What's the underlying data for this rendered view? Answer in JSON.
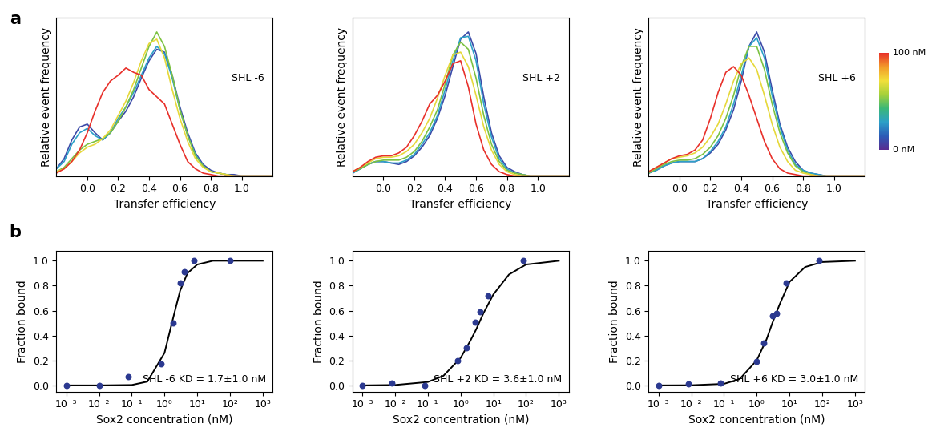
{
  "panel_labels": [
    "a",
    "b"
  ],
  "colorbar": {
    "colors": [
      "#5a2d91",
      "#2b5cb8",
      "#2ca0c8",
      "#3cb878",
      "#a6d13a",
      "#f2e03a",
      "#f39c2a",
      "#e8302a"
    ],
    "labels": [
      "0 nM",
      "100 nM"
    ]
  },
  "chart_data": [
    {
      "type": "line",
      "label": "SHL -6",
      "xlabel": "Transfer efficiency",
      "ylabel": "Relative event frequency",
      "xlim": [
        -0.2,
        1.2
      ],
      "xticks": [
        0.0,
        0.2,
        0.4,
        0.6,
        0.8,
        1.0
      ],
      "ylim": [
        0,
        1.1
      ],
      "yticks": [],
      "tick_labels": "x",
      "x": [
        -0.2,
        -0.15,
        -0.1,
        -0.05,
        0.0,
        0.05,
        0.1,
        0.15,
        0.2,
        0.25,
        0.3,
        0.35,
        0.4,
        0.45,
        0.5,
        0.55,
        0.6,
        0.65,
        0.7,
        0.75,
        0.8,
        0.85,
        0.9,
        0.95,
        1.0,
        1.05,
        1.1,
        1.15,
        1.2
      ],
      "series": [
        {
          "color": "#3b4aa8",
          "values": [
            0.05,
            0.12,
            0.25,
            0.34,
            0.36,
            0.3,
            0.25,
            0.3,
            0.38,
            0.45,
            0.55,
            0.68,
            0.8,
            0.88,
            0.86,
            0.7,
            0.48,
            0.3,
            0.16,
            0.08,
            0.04,
            0.02,
            0.01,
            0.01,
            0,
            0,
            0,
            0,
            0
          ]
        },
        {
          "color": "#2ca0c8",
          "values": [
            0.05,
            0.1,
            0.22,
            0.3,
            0.33,
            0.28,
            0.25,
            0.3,
            0.4,
            0.48,
            0.58,
            0.7,
            0.82,
            0.9,
            0.85,
            0.68,
            0.46,
            0.28,
            0.15,
            0.07,
            0.03,
            0.02,
            0.01,
            0,
            0,
            0,
            0,
            0,
            0
          ]
        },
        {
          "color": "#7cc242",
          "values": [
            0.03,
            0.06,
            0.12,
            0.18,
            0.22,
            0.24,
            0.26,
            0.3,
            0.38,
            0.48,
            0.6,
            0.75,
            0.9,
            1.0,
            0.9,
            0.7,
            0.46,
            0.28,
            0.14,
            0.07,
            0.03,
            0.02,
            0.01,
            0,
            0,
            0,
            0,
            0,
            0
          ]
        },
        {
          "color": "#e6d83a",
          "values": [
            0.03,
            0.05,
            0.1,
            0.16,
            0.2,
            0.22,
            0.26,
            0.32,
            0.42,
            0.52,
            0.65,
            0.8,
            0.92,
            0.95,
            0.82,
            0.6,
            0.4,
            0.24,
            0.12,
            0.06,
            0.03,
            0.02,
            0.01,
            0,
            0,
            0,
            0,
            0,
            0
          ]
        },
        {
          "color": "#e8302a",
          "values": [
            0.02,
            0.05,
            0.1,
            0.18,
            0.3,
            0.45,
            0.58,
            0.66,
            0.7,
            0.75,
            0.72,
            0.7,
            0.6,
            0.55,
            0.5,
            0.36,
            0.22,
            0.1,
            0.05,
            0.02,
            0.01,
            0,
            0,
            0,
            0,
            0,
            0,
            0,
            0
          ]
        }
      ]
    },
    {
      "type": "line",
      "label": "SHL +2",
      "xlabel": "Transfer efficiency",
      "ylabel": "Relative event frequency",
      "xlim": [
        -0.2,
        1.2
      ],
      "xticks": [
        0.0,
        0.2,
        0.4,
        0.6,
        0.8,
        1.0
      ],
      "ylim": [
        0,
        1.1
      ],
      "yticks": [],
      "tick_labels": "x",
      "x": [
        -0.2,
        -0.15,
        -0.1,
        -0.05,
        0.0,
        0.05,
        0.1,
        0.15,
        0.2,
        0.25,
        0.3,
        0.35,
        0.4,
        0.45,
        0.5,
        0.55,
        0.6,
        0.65,
        0.7,
        0.75,
        0.8,
        0.85,
        0.9,
        0.95,
        1.0,
        1.05,
        1.1,
        1.15,
        1.2
      ],
      "series": [
        {
          "color": "#3b4aa8",
          "values": [
            0.02,
            0.05,
            0.08,
            0.1,
            0.1,
            0.09,
            0.08,
            0.1,
            0.14,
            0.2,
            0.28,
            0.4,
            0.56,
            0.76,
            0.95,
            1.0,
            0.85,
            0.55,
            0.3,
            0.14,
            0.06,
            0.03,
            0.01,
            0,
            0,
            0,
            0,
            0,
            0
          ]
        },
        {
          "color": "#2ca0c8",
          "values": [
            0.02,
            0.05,
            0.08,
            0.1,
            0.1,
            0.09,
            0.09,
            0.11,
            0.15,
            0.22,
            0.3,
            0.42,
            0.6,
            0.8,
            0.96,
            0.97,
            0.8,
            0.5,
            0.27,
            0.12,
            0.05,
            0.02,
            0.01,
            0,
            0,
            0,
            0,
            0,
            0
          ]
        },
        {
          "color": "#7cc242",
          "values": [
            0.03,
            0.05,
            0.08,
            0.1,
            0.11,
            0.11,
            0.11,
            0.13,
            0.17,
            0.24,
            0.34,
            0.46,
            0.64,
            0.84,
            0.93,
            0.88,
            0.68,
            0.42,
            0.22,
            0.1,
            0.04,
            0.02,
            0.01,
            0,
            0,
            0,
            0,
            0,
            0
          ]
        },
        {
          "color": "#e6d83a",
          "values": [
            0.03,
            0.06,
            0.09,
            0.12,
            0.13,
            0.13,
            0.14,
            0.17,
            0.22,
            0.3,
            0.4,
            0.54,
            0.7,
            0.84,
            0.86,
            0.76,
            0.56,
            0.34,
            0.18,
            0.08,
            0.03,
            0.01,
            0,
            0,
            0,
            0,
            0,
            0,
            0
          ]
        },
        {
          "color": "#e8302a",
          "values": [
            0.03,
            0.06,
            0.1,
            0.13,
            0.14,
            0.14,
            0.16,
            0.2,
            0.28,
            0.38,
            0.5,
            0.56,
            0.66,
            0.78,
            0.8,
            0.62,
            0.36,
            0.18,
            0.08,
            0.03,
            0.01,
            0,
            0,
            0,
            0,
            0,
            0,
            0,
            0
          ]
        }
      ]
    },
    {
      "type": "line",
      "label": "SHL +6",
      "xlabel": "Transfer efficiency",
      "ylabel": "Relative event frequency",
      "xlim": [
        -0.2,
        1.2
      ],
      "xticks": [
        0.0,
        0.2,
        0.4,
        0.6,
        0.8,
        1.0
      ],
      "ylim": [
        0,
        1.1
      ],
      "yticks": [],
      "tick_labels": "x",
      "x": [
        -0.2,
        -0.15,
        -0.1,
        -0.05,
        0.0,
        0.05,
        0.1,
        0.15,
        0.2,
        0.25,
        0.3,
        0.35,
        0.4,
        0.45,
        0.5,
        0.55,
        0.6,
        0.65,
        0.7,
        0.75,
        0.8,
        0.85,
        0.9,
        0.95,
        1.0,
        1.05,
        1.1,
        1.15,
        1.2
      ],
      "series": [
        {
          "color": "#3b4aa8",
          "values": [
            0.02,
            0.04,
            0.07,
            0.09,
            0.1,
            0.1,
            0.1,
            0.12,
            0.16,
            0.22,
            0.32,
            0.46,
            0.66,
            0.9,
            1.0,
            0.86,
            0.6,
            0.36,
            0.2,
            0.1,
            0.04,
            0.02,
            0.01,
            0,
            0,
            0,
            0,
            0,
            0
          ]
        },
        {
          "color": "#2ca0c8",
          "values": [
            0.02,
            0.04,
            0.07,
            0.09,
            0.1,
            0.1,
            0.1,
            0.12,
            0.17,
            0.24,
            0.34,
            0.5,
            0.7,
            0.9,
            0.96,
            0.82,
            0.56,
            0.34,
            0.18,
            0.08,
            0.04,
            0.02,
            0.01,
            0,
            0,
            0,
            0,
            0,
            0
          ]
        },
        {
          "color": "#7cc242",
          "values": [
            0.02,
            0.05,
            0.08,
            0.1,
            0.11,
            0.11,
            0.12,
            0.15,
            0.2,
            0.28,
            0.4,
            0.56,
            0.76,
            0.9,
            0.9,
            0.74,
            0.5,
            0.3,
            0.16,
            0.07,
            0.03,
            0.01,
            0,
            0,
            0,
            0,
            0,
            0,
            0
          ]
        },
        {
          "color": "#e6d83a",
          "values": [
            0.03,
            0.06,
            0.09,
            0.12,
            0.13,
            0.14,
            0.16,
            0.2,
            0.27,
            0.36,
            0.5,
            0.66,
            0.78,
            0.82,
            0.74,
            0.56,
            0.36,
            0.2,
            0.1,
            0.04,
            0.02,
            0.01,
            0,
            0,
            0,
            0,
            0,
            0,
            0
          ]
        },
        {
          "color": "#e8302a",
          "values": [
            0.03,
            0.06,
            0.09,
            0.12,
            0.14,
            0.15,
            0.18,
            0.25,
            0.4,
            0.58,
            0.72,
            0.76,
            0.7,
            0.56,
            0.4,
            0.24,
            0.12,
            0.05,
            0.02,
            0.01,
            0,
            0,
            0,
            0,
            0,
            0,
            0,
            0,
            0
          ]
        }
      ]
    },
    {
      "type": "scatter",
      "log": "x",
      "annotation": "SHL -6 KD = 1.7±1.0 nM",
      "xlabel": "Sox2 concentration (nM)",
      "ylabel": "Fraction bound",
      "xlim": [
        0.0005,
        2000
      ],
      "xticks": [
        {
          "value": 0.001,
          "label": "10⁻³"
        },
        {
          "value": 0.01,
          "label": "10⁻²"
        },
        {
          "value": 0.1,
          "label": "10⁻¹"
        },
        {
          "value": 1,
          "label": "10⁰"
        },
        {
          "value": 10,
          "label": "10¹"
        },
        {
          "value": 100,
          "label": "10²"
        },
        {
          "value": 1000,
          "label": "10³"
        }
      ],
      "ylim": [
        -0.05,
        1.08
      ],
      "yticks": [
        0.0,
        0.2,
        0.4,
        0.6,
        0.8,
        1.0
      ],
      "series": [
        {
          "type": "line",
          "color": "#000000",
          "line_style": "solid",
          "x": [
            0.001,
            0.01,
            0.1,
            0.3,
            1,
            2,
            3,
            5,
            10,
            30,
            100,
            1000
          ],
          "values": [
            0,
            0,
            0.003,
            0.03,
            0.26,
            0.58,
            0.76,
            0.9,
            0.97,
            1.0,
            1.0,
            1.0
          ]
        },
        {
          "type": "scatter",
          "color": "#2b3990",
          "marker": "o",
          "x": [
            0.001,
            0.01,
            0.08,
            0.8,
            1.8,
            3,
            4,
            8,
            100
          ],
          "values": [
            0,
            0,
            0.07,
            0.17,
            0.5,
            0.82,
            0.91,
            1.0,
            1.0
          ]
        }
      ]
    },
    {
      "type": "scatter",
      "log": "x",
      "annotation": "SHL +2 KD = 3.6±1.0 nM",
      "xlabel": "Sox2 concentration (nM)",
      "ylabel": "Fraction bound",
      "xlim": [
        0.0005,
        2000
      ],
      "xticks": [
        {
          "value": 0.001,
          "label": "10⁻³"
        },
        {
          "value": 0.01,
          "label": "10⁻²"
        },
        {
          "value": 0.1,
          "label": "10⁻¹"
        },
        {
          "value": 1,
          "label": "10⁰"
        },
        {
          "value": 10,
          "label": "10¹"
        },
        {
          "value": 100,
          "label": "10²"
        },
        {
          "value": 1000,
          "label": "10³"
        }
      ],
      "ylim": [
        -0.05,
        1.08
      ],
      "yticks": [
        0.0,
        0.2,
        0.4,
        0.6,
        0.8,
        1.0
      ],
      "series": [
        {
          "type": "line",
          "color": "#000000",
          "line_style": "solid",
          "x": [
            0.001,
            0.01,
            0.1,
            0.3,
            1,
            2,
            3,
            5,
            10,
            30,
            100,
            1000
          ],
          "values": [
            0,
            0.003,
            0.027,
            0.077,
            0.22,
            0.36,
            0.45,
            0.58,
            0.73,
            0.89,
            0.97,
            1.0
          ]
        },
        {
          "type": "scatter",
          "color": "#2b3990",
          "marker": "o",
          "x": [
            0.001,
            0.008,
            0.08,
            0.8,
            1.5,
            2.8,
            4,
            7,
            80
          ],
          "values": [
            0,
            0.02,
            0,
            0.2,
            0.3,
            0.51,
            0.59,
            0.72,
            1.0
          ]
        }
      ]
    },
    {
      "type": "scatter",
      "log": "x",
      "annotation": "SHL +6 KD = 3.0±1.0 nM",
      "xlabel": "Sox2 concentration (nM)",
      "ylabel": "Fraction bound",
      "xlim": [
        0.0005,
        2000
      ],
      "xticks": [
        {
          "value": 0.001,
          "label": "10⁻³"
        },
        {
          "value": 0.01,
          "label": "10⁻²"
        },
        {
          "value": 0.1,
          "label": "10⁻¹"
        },
        {
          "value": 1,
          "label": "10⁰"
        },
        {
          "value": 10,
          "label": "10¹"
        },
        {
          "value": 100,
          "label": "10²"
        },
        {
          "value": 1000,
          "label": "10³"
        }
      ],
      "ylim": [
        -0.05,
        1.08
      ],
      "yticks": [
        0.0,
        0.2,
        0.4,
        0.6,
        0.8,
        1.0
      ],
      "series": [
        {
          "type": "line",
          "color": "#000000",
          "line_style": "solid",
          "x": [
            0.001,
            0.01,
            0.1,
            0.3,
            1,
            2,
            3,
            5,
            10,
            30,
            100,
            1000
          ],
          "values": [
            0,
            0.001,
            0.012,
            0.05,
            0.2,
            0.37,
            0.5,
            0.65,
            0.83,
            0.95,
            0.99,
            1.0
          ]
        },
        {
          "type": "scatter",
          "color": "#2b3990",
          "marker": "o",
          "x": [
            0.001,
            0.008,
            0.08,
            1,
            1.6,
            3,
            4,
            8,
            80
          ],
          "values": [
            0,
            0.01,
            0.02,
            0.19,
            0.34,
            0.56,
            0.58,
            0.82,
            1.0
          ]
        }
      ]
    }
  ]
}
